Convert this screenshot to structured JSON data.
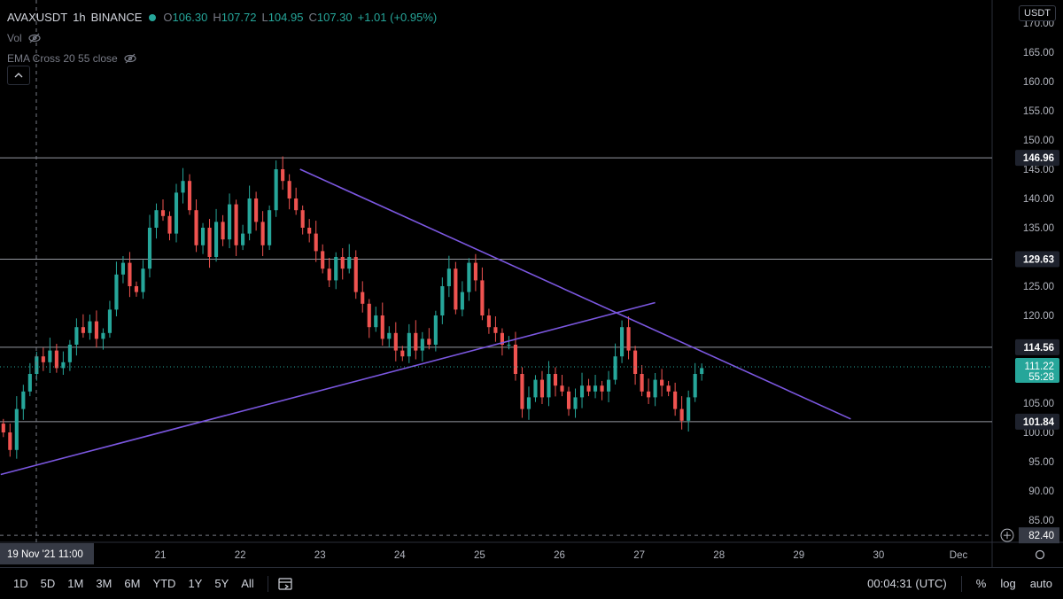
{
  "header": {
    "symbol": "AVAXUSDT",
    "interval": "1h",
    "exchange": "BINANCE",
    "o_label": "O",
    "o": "106.30",
    "h_label": "H",
    "h": "107.72",
    "l_label": "L",
    "l": "104.95",
    "c_label": "C",
    "c": "107.30",
    "change": "+1.01 (+0.95%)",
    "vol_label": "Vol",
    "ema_label": "EMA Cross 20 55 close",
    "currency": "USDT"
  },
  "chart_data": {
    "type": "candlestick",
    "y_ticks": [
      "170.00",
      "165.00",
      "160.00",
      "155.00",
      "150.00",
      "145.00",
      "140.00",
      "135.00",
      "130.00",
      "125.00",
      "120.00",
      "115.00",
      "110.00",
      "105.00",
      "100.00",
      "95.00",
      "90.00",
      "85.00"
    ],
    "y_range": [
      82.4,
      170.0
    ],
    "x_ticks": [
      "21",
      "22",
      "23",
      "24",
      "25",
      "26",
      "27",
      "28",
      "29",
      "30",
      "Dec"
    ],
    "crosshair_time": "19 Nov '21  11:00",
    "crosshair_price": "82.40",
    "current_price": "111.22",
    "countdown": "55:28",
    "price_colors": {
      "up": "#26a69a",
      "down": "#ef5350",
      "trendline": "#7b57e0",
      "level": "#787b86"
    },
    "horizontal_levels": [
      {
        "price": 146.96,
        "label": "146.96"
      },
      {
        "price": 129.63,
        "label": "129.63"
      },
      {
        "price": 114.56,
        "label": "114.56"
      },
      {
        "price": 101.84,
        "label": "101.84"
      }
    ],
    "trendlines": [
      {
        "from": {
          "day": 22.75,
          "price": 145.0
        },
        "to": {
          "day": 29.65,
          "price": 102.3
        }
      },
      {
        "from": {
          "day": 19.0,
          "price": 92.8
        },
        "to": {
          "day": 27.2,
          "price": 122.2
        }
      }
    ],
    "close_series": {
      "start_day": 19.0,
      "step_hours": 2,
      "closes": [
        100,
        97,
        104,
        107,
        110,
        113,
        112,
        114,
        111,
        112,
        115,
        118,
        117,
        119,
        116,
        117,
        121,
        127,
        129,
        125,
        124,
        128,
        135,
        138,
        137,
        134,
        141,
        143,
        138,
        132,
        135,
        130,
        136,
        133,
        139,
        132,
        134,
        140,
        136,
        132,
        138,
        145,
        143,
        140,
        138,
        135,
        134,
        131,
        128,
        126,
        130,
        128,
        130,
        124,
        122,
        118,
        120,
        116,
        117,
        114,
        113,
        117,
        114,
        116,
        115,
        120,
        125,
        128,
        121,
        124,
        129,
        126,
        120,
        118,
        117,
        115,
        115,
        110,
        104,
        106,
        109,
        106,
        110,
        108,
        107,
        104,
        106,
        108,
        107,
        108,
        107,
        109,
        113,
        118,
        114,
        110,
        107,
        106,
        109,
        108,
        107,
        104,
        102,
        106,
        110,
        111
      ]
    },
    "timeframes": [
      "1D",
      "5D",
      "1M",
      "3M",
      "6M",
      "YTD",
      "1Y",
      "5Y",
      "All"
    ],
    "clock": "00:04:31 (UTC)",
    "options": [
      "%",
      "log",
      "auto"
    ]
  }
}
